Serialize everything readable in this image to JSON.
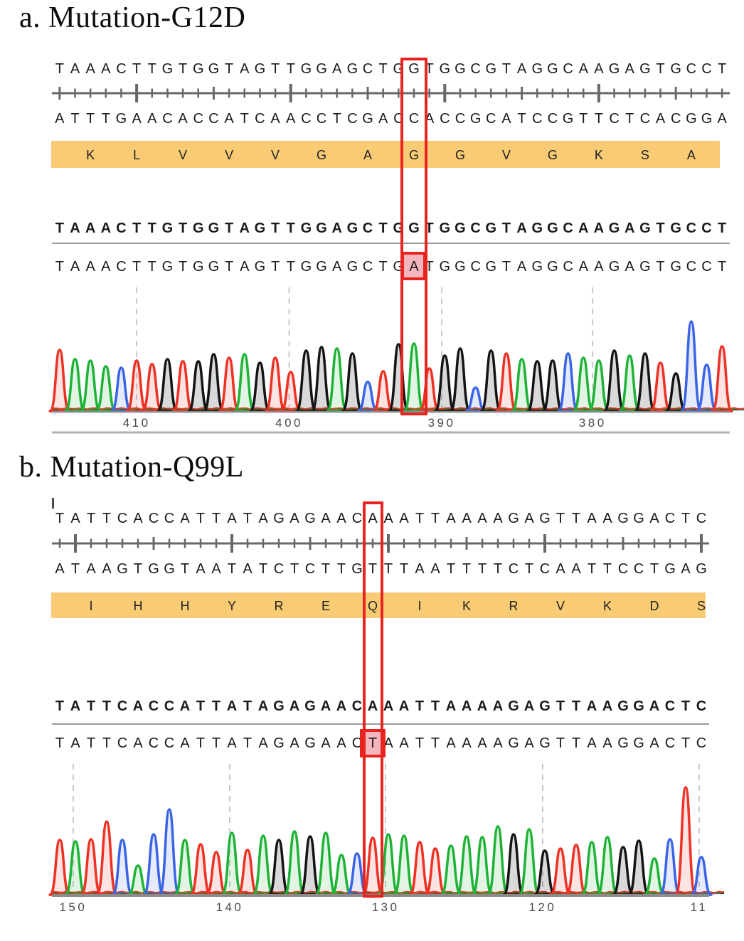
{
  "figure": {
    "panels": [
      {
        "label": "a",
        "title": "a. Mutation-G12D",
        "top_sequence": "TAAACTTGTGGTAGTTGGAGCTGGTGGCGTAGGCAAGAGTGCCT",
        "complement_sequence": "ATTTGAACACCATCAACCTCGACCACCGCATCCGTTCTCACGGA",
        "amino_acids": [
          "K",
          "L",
          "V",
          "V",
          "V",
          "G",
          "A",
          "G",
          "G",
          "V",
          "G",
          "K",
          "S",
          "A"
        ],
        "reference_sequence": "TAAACTTGTGGTAGTTGGAGCTGGTGGCGTAGGCAAGAGTGCCT",
        "sample_sequence": "TAAACTTGTGGTAGTTGGAGCTGATGGCGTAGGCAAGAGTGCCT",
        "mutation": {
          "letter_index": 23,
          "reference_base": "G",
          "mutant_base": "A",
          "amino_index": 7,
          "amino_acid": "G"
        }
      },
      {
        "label": "b",
        "title": "b. Mutation-Q99L",
        "top_sequence": "TATTCACCATTATAGAGAACAAATTAAAAGAGTTAAGGACTC",
        "complement_sequence": "ATAAGTGGTAATATCTCTTGTTTAATTTTCTCAATTCCTGAG",
        "amino_acids": [
          "I",
          "H",
          "H",
          "Y",
          "R",
          "E",
          "Q",
          "I",
          "K",
          "R",
          "V",
          "K",
          "D",
          "S"
        ],
        "reference_sequence": "TATTCACCATTATAGAGAACAAATTAAAAGAGTTAAGGACTC",
        "sample_sequence": "TATTCACCATTATAGAGAACTAATTAAAAGAGTTAAGGACTC",
        "mutation": {
          "letter_index": 20,
          "reference_base": "A",
          "mutant_base": "T",
          "amino_index": 6,
          "amino_acid": "Q"
        }
      }
    ]
  },
  "chart_data": [
    {
      "type": "line",
      "subtype": "sanger_chromatogram",
      "title": "Mutation-G12D trace",
      "x_direction": "decreasing_left_to_right",
      "x_tick_labels": [
        "410",
        "400",
        "390",
        "380"
      ],
      "ticks": [
        {
          "label": "410",
          "letter": 5.0
        },
        {
          "label": "400",
          "letter": 14.9
        },
        {
          "label": "390",
          "letter": 24.8
        },
        {
          "label": "380",
          "letter": 34.6
        }
      ],
      "bases": "TAAACTTGTGGTAGTTGGAGCTGATGGCGTAGGCAAGAGTGCCT",
      "peak_heights": [
        86,
        73,
        71,
        63,
        61,
        71,
        66,
        73,
        70,
        70,
        80,
        75,
        80,
        68,
        75,
        55,
        85,
        90,
        88,
        81,
        41,
        56,
        94,
        95,
        60,
        78,
        88,
        33,
        85,
        81,
        73,
        70,
        71,
        81,
        75,
        71,
        85,
        78,
        81,
        68,
        53,
        126,
        65,
        91
      ],
      "boxed_peak_index": 23
    },
    {
      "type": "line",
      "subtype": "sanger_chromatogram",
      "title": "Mutation-Q99L trace",
      "x_direction": "decreasing_left_to_right",
      "x_tick_labels": [
        "150",
        "140",
        "130",
        "120",
        "11"
      ],
      "ticks": [
        {
          "label": "150",
          "letter": 0.86
        },
        {
          "label": "140",
          "letter": 10.86
        },
        {
          "label": "130",
          "letter": 20.82
        },
        {
          "label": "120",
          "letter": 30.86
        },
        {
          "label": "11",
          "letter": 40.86
        }
      ],
      "bases": "TATTCACCATTATAGAGAACTAATTAAAAGAGTTAAGGACTC",
      "peak_heights": [
        77,
        75,
        78,
        103,
        77,
        41,
        85,
        120,
        77,
        71,
        60,
        87,
        63,
        83,
        77,
        89,
        82,
        87,
        56,
        58,
        80,
        85,
        83,
        74,
        65,
        69,
        82,
        81,
        96,
        85,
        92,
        62,
        65,
        70,
        74,
        81,
        67,
        76,
        51,
        78,
        151,
        53
      ],
      "boxed_peak_index": 20
    }
  ],
  "colors": {
    "trace": {
      "A": "#1eb336",
      "C": "#3a64e6",
      "G": "#141414",
      "T": "#ee3123"
    },
    "amino_band_bg": "#f8cb74",
    "mutation_box_border": "#e8241f",
    "highlight_fill": "#f6b6bd",
    "ruler_gray": "#686868",
    "divider_gray": "#9b9b9b",
    "gridline_gray": "#c4c4c4",
    "axis_label_gray": "#4b4b4b",
    "baseline_gray": "#8c8c8c",
    "bottom_line_gray": "#b3b3b3",
    "letter_color": "#1b1b1b"
  }
}
